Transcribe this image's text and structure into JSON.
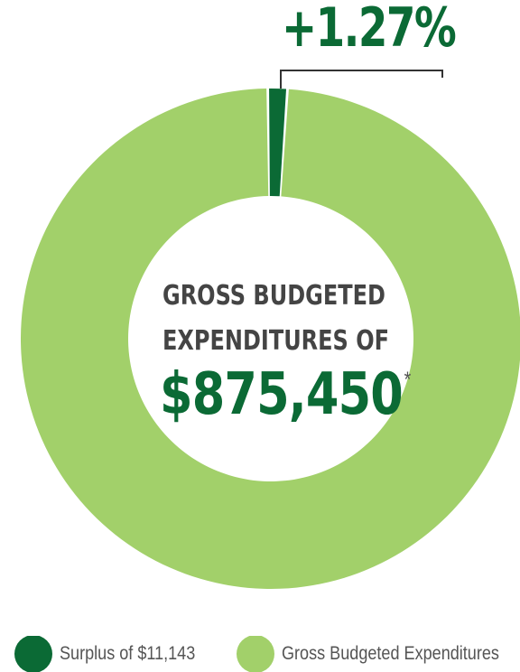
{
  "colors": {
    "surplus": "#0b6a35",
    "budget": "#a2d06a",
    "text_dark": "#444444",
    "text_muted": "#555555"
  },
  "callout": {
    "percent": "+1.27%"
  },
  "center": {
    "line1": "GROSS BUDGETED",
    "line2": "EXPENDITURES OF",
    "amount": "$875,450",
    "asterisk": "*"
  },
  "legend": {
    "surplus_label": "Surplus of $11,143",
    "budget_label": "Gross Budgeted Expenditures"
  },
  "chart_data": {
    "type": "pie",
    "style": "donut",
    "slices": [
      {
        "name": "Surplus of $11,143",
        "value": 11143,
        "percent": 1.27,
        "color": "#0b6a35"
      },
      {
        "name": "Gross Budgeted Expenditures",
        "value": 875450,
        "color": "#a2d06a"
      }
    ],
    "annotation": "+1.27%",
    "center_label": "GROSS BUDGETED EXPENDITURES OF $875,450*",
    "legend_position": "bottom"
  }
}
